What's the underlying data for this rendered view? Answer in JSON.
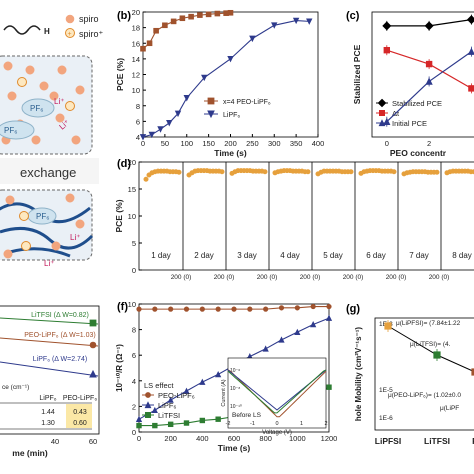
{
  "chart_data": [
    {
      "panel": "a",
      "type": "other",
      "legend": [
        "spiro",
        "spiro⁺"
      ],
      "chain_label": "H",
      "particle_labels": [
        "PF₆",
        "Li⁺",
        "Li⁺",
        "PF₆",
        "PF₆",
        "Li⁺",
        "Li⁺",
        "PF₆"
      ],
      "caption": "exchange"
    },
    {
      "panel": "b",
      "type": "line",
      "xlabel": "Time (s)",
      "ylabel": "PCE (%)",
      "xlim": [
        0,
        400
      ],
      "ylim": [
        4,
        20
      ],
      "xticks": [
        0,
        50,
        100,
        150,
        200,
        250,
        300,
        350,
        400
      ],
      "yticks": [
        4,
        6,
        8,
        10,
        12,
        14,
        16,
        18,
        20
      ],
      "series": [
        {
          "name": "x=4 PEO-LiPF₆",
          "color": "#a0522d",
          "marker": "square",
          "x": [
            0,
            15,
            30,
            50,
            70,
            90,
            110,
            130,
            150,
            170,
            190,
            200
          ],
          "y": [
            15.3,
            16.0,
            17.6,
            18.3,
            18.8,
            19.2,
            19.4,
            19.6,
            19.7,
            19.8,
            19.85,
            19.9
          ]
        },
        {
          "name": "LiPF₆",
          "color": "#2e3a8c",
          "marker": "triangle-down",
          "x": [
            0,
            20,
            40,
            60,
            80,
            100,
            140,
            200,
            250,
            300,
            350,
            380
          ],
          "y": [
            4.0,
            4.3,
            5.0,
            5.8,
            7.0,
            9.0,
            11.6,
            14.0,
            16.6,
            18.3,
            18.9,
            18.8
          ]
        }
      ]
    },
    {
      "panel": "c",
      "type": "line",
      "xlabel": "PEO concentr",
      "ylabel": "Stabilized PCE",
      "xticks": [
        0,
        2
      ],
      "legend": [
        "Stabilized PCE",
        "Δt",
        "Initial PCE"
      ],
      "series": [
        {
          "name": "Stabilized PCE",
          "color": "#000000",
          "marker": "diamond",
          "x": [
            0,
            2,
            4
          ],
          "y": [
            19.0,
            19.0,
            19.9
          ]
        },
        {
          "name": "Δt",
          "color": "#d62728",
          "marker": "square",
          "x": [
            0,
            2,
            4
          ],
          "y": [
            15.5,
            13.5,
            10.0
          ]
        },
        {
          "name": "Initial PCE",
          "color": "#2e3a8c",
          "marker": "triangle",
          "x": [
            0,
            2,
            4
          ],
          "y": [
            5.2,
            11.0,
            15.3
          ]
        }
      ]
    },
    {
      "panel": "d",
      "type": "scatter",
      "ylabel": "PCE (%)",
      "ylim": [
        0,
        20
      ],
      "yticks": [
        0,
        5,
        10,
        15,
        20
      ],
      "days": [
        "1 day",
        "2 day",
        "3 day",
        "4 day",
        "5 day",
        "6 day",
        "7 day",
        "8 day"
      ],
      "segment_ticks": [
        "200 (0)",
        "200 (0)",
        "200 (0)",
        "200 (0)",
        "200 (0)",
        "200 (0)",
        "200 (0)",
        "200"
      ],
      "marker_color": "#e6a03c",
      "day_values": [
        [
          16.8,
          17.6,
          18.0,
          18.2,
          18.3,
          18.3,
          18.3,
          18.3,
          18.2,
          18.2,
          18.2,
          18.1
        ],
        [
          17.6,
          18.0,
          18.3,
          18.4,
          18.4,
          18.4,
          18.4,
          18.3,
          18.3,
          18.3,
          18.3,
          18.2
        ],
        [
          17.9,
          18.2,
          18.4,
          18.4,
          18.4,
          18.4,
          18.4,
          18.3,
          18.3,
          18.3,
          18.3,
          18.2
        ],
        [
          18.0,
          18.2,
          18.3,
          18.4,
          18.4,
          18.4,
          18.3,
          18.3,
          18.3,
          18.3,
          18.2,
          18.2
        ],
        [
          17.8,
          18.1,
          18.3,
          18.3,
          18.3,
          18.3,
          18.3,
          18.3,
          18.2,
          18.2,
          18.2,
          18.2
        ],
        [
          17.9,
          18.2,
          18.3,
          18.4,
          18.4,
          18.4,
          18.4,
          18.3,
          18.3,
          18.3,
          18.3,
          18.2
        ],
        [
          17.8,
          18.0,
          18.1,
          18.2,
          18.2,
          18.2,
          18.2,
          18.2,
          18.1,
          18.1,
          18.1,
          18.1
        ],
        [
          18.0,
          18.2,
          18.3,
          18.3,
          18.3,
          18.3,
          18.3,
          18.3,
          18.2,
          18.2,
          18.2,
          18.2
        ]
      ]
    },
    {
      "panel": "e",
      "type": "line",
      "xlabel": "me (min)",
      "xticks": [
        40,
        60
      ],
      "series": [
        {
          "name": "LiTFSI (Δ W=0.82)",
          "color": "#2e7d32",
          "marker": "square",
          "x": [
            0,
            20,
            40,
            60
          ],
          "y": [
            0.98,
            0.95,
            0.92,
            0.9
          ]
        },
        {
          "name": "PEO-LiPF₆ (Δ W=1.03)",
          "color": "#a0522d",
          "marker": "circle",
          "x": [
            0,
            20,
            40,
            60
          ],
          "y": [
            0.95,
            0.9,
            0.85,
            0.8
          ]
        },
        {
          "name": "LiPF₆ (Δ W=2.74)",
          "color": "#2e3a8c",
          "marker": "triangle",
          "x": [
            0,
            20,
            40,
            60
          ],
          "y": [
            0.95,
            0.85,
            0.75,
            0.65
          ]
        }
      ],
      "table": {
        "header": [
          "",
          "LiPF₆",
          "PEO-LiPF₆"
        ],
        "unit": "ce (cm⁻¹)",
        "rows": [
          [
            "",
            "1.44",
            "0.43"
          ],
          [
            "",
            "1.30",
            "0.60"
          ]
        ]
      }
    },
    {
      "panel": "f",
      "type": "line",
      "xlabel": "Time (s)",
      "ylabel": "10⁻¹⁰/R (Ω⁻¹)",
      "xlim": [
        0,
        1200
      ],
      "ylim": [
        0,
        10
      ],
      "xticks": [
        0,
        200,
        400,
        600,
        800,
        1000,
        1200
      ],
      "yticks": [
        0,
        2,
        4,
        6,
        8,
        10
      ],
      "annotation": "LS effect",
      "series": [
        {
          "name": "PEO-LiPF₆",
          "color": "#a0522d",
          "marker": "circle",
          "x": [
            0,
            100,
            200,
            300,
            400,
            500,
            600,
            700,
            800,
            900,
            1000,
            1100,
            1200
          ],
          "y": [
            9.6,
            9.6,
            9.6,
            9.6,
            9.6,
            9.6,
            9.6,
            9.6,
            9.6,
            9.7,
            9.7,
            9.8,
            9.8
          ]
        },
        {
          "name": "LiPF₆",
          "color": "#2e3a8c",
          "marker": "triangle",
          "x": [
            0,
            100,
            200,
            300,
            400,
            500,
            600,
            700,
            800,
            900,
            1000,
            1100,
            1200
          ],
          "y": [
            1.0,
            1.7,
            2.5,
            3.2,
            3.9,
            4.5,
            5.2,
            5.9,
            6.5,
            7.2,
            7.8,
            8.4,
            8.9
          ]
        },
        {
          "name": "LiTFSI",
          "color": "#2e7d32",
          "marker": "square",
          "x": [
            0,
            100,
            200,
            300,
            400,
            500,
            600,
            700,
            800,
            900,
            1000,
            1100,
            1200
          ],
          "y": [
            0.5,
            0.5,
            0.6,
            0.7,
            0.9,
            1.0,
            1.2,
            1.5,
            1.9,
            2.3,
            2.6,
            3.0,
            3.5
          ]
        }
      ],
      "inset": {
        "xlabel": "Voltage (V)",
        "ylabel": "Current (A)",
        "xticks": [
          -2,
          -1,
          0,
          1,
          2
        ],
        "yticks": [
          "10⁻⁶",
          "10⁻⁸",
          "10⁻¹⁰"
        ],
        "label": "Before LS"
      }
    },
    {
      "panel": "g",
      "type": "scatter",
      "ylabel": "hole Mobility (cm²V⁻¹s⁻¹)",
      "yticks": [
        "1E-3",
        "1E-5",
        "1E-6"
      ],
      "categories": [
        "LiPFSI",
        "LiTFSI",
        "P"
      ],
      "points": [
        {
          "category": "LiPFSI",
          "label": "μ(LiPFSI)= (7.84±1.22",
          "color": "#e6a03c"
        },
        {
          "category": "LiTFSI",
          "label": "μ(LiTFSI)= (4.",
          "color": "#2e7d32"
        },
        {
          "category": "PEO-LiPF₆",
          "label": "μ(PEO-LiPF₆)= (1.02±0.0",
          "color": "#a0522d"
        },
        {
          "category": "LiPF₆",
          "label": "μ(LiPF",
          "color": "#2e3a8c"
        }
      ]
    }
  ]
}
